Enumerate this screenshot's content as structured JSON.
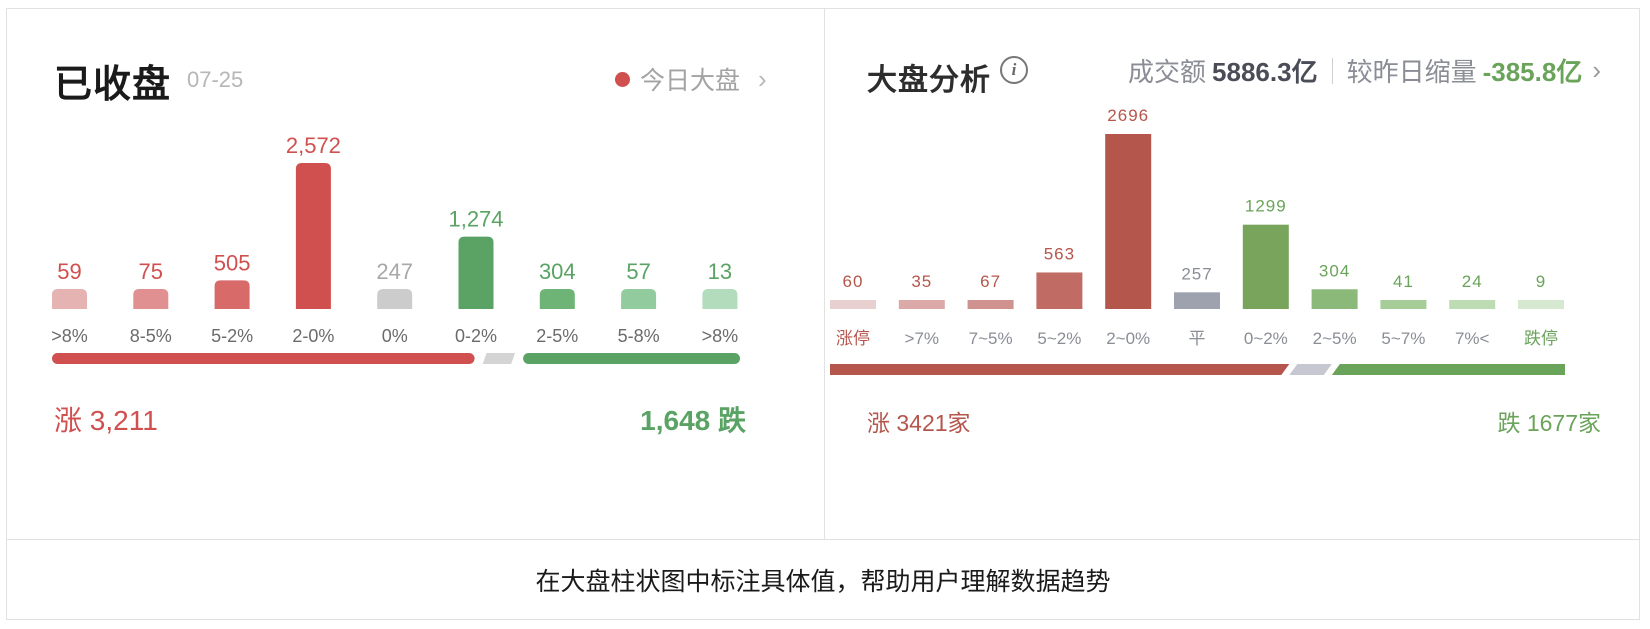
{
  "left_panel": {
    "title": "已收盘",
    "date": "07-25",
    "link_label": "今日大盘",
    "chevron": "›",
    "summary_up": "涨 3,211",
    "summary_down": "1,648 跌",
    "colors": {
      "up_strong": "#d05050",
      "flat": "#cccccc",
      "down_strong": "#5aa364"
    }
  },
  "right_panel": {
    "title": "大盘分析",
    "info_icon": "i",
    "volume_label": "成交额",
    "volume_value": "5886.3亿",
    "change_label": "较昨日缩量",
    "change_value": "-385.8亿",
    "chevron": "›",
    "summary_up": "涨 3421家",
    "summary_down": "跌 1677家"
  },
  "footer": {
    "caption": "在大盘柱状图中标注具体值，帮助用户理解数据趋势"
  },
  "chart_data": [
    {
      "type": "bar",
      "categories": [
        ">8%",
        "8-5%",
        "5-2%",
        "2-0%",
        "0%",
        "0-2%",
        "2-5%",
        "5-8%",
        ">8%"
      ],
      "values": [
        59,
        75,
        505,
        2572,
        247,
        1274,
        304,
        57,
        13
      ],
      "value_labels": [
        "59",
        "75",
        "505",
        "2,572",
        "247",
        "1,274",
        "304",
        "57",
        "13"
      ],
      "colors": [
        "#e6b3b3",
        "#e09090",
        "#d86a6a",
        "#d05050",
        "#cccccc",
        "#5aa364",
        "#6db476",
        "#92cc9e",
        "#b3dcbc"
      ],
      "label_colors": [
        "#d05050",
        "#d05050",
        "#d05050",
        "#d05050",
        "#a8a8a8",
        "#5aa364",
        "#5aa364",
        "#5aa364",
        "#5aa364"
      ],
      "ratio_bar": {
        "up": 3211,
        "flat": 247,
        "down": 1648,
        "colors": {
          "up": "#d05050",
          "flat": "#d4d4d4",
          "down": "#5aa364"
        }
      }
    },
    {
      "type": "bar",
      "categories": [
        "涨停",
        ">7%",
        "7~5%",
        "5~2%",
        "2~0%",
        "平",
        "0~2%",
        "2~5%",
        "5~7%",
        "7%<",
        "跌停"
      ],
      "values": [
        60,
        35,
        67,
        563,
        2696,
        257,
        1299,
        304,
        41,
        24,
        9
      ],
      "value_labels": [
        "60",
        "35",
        "67",
        "563",
        "2696",
        "257",
        "1299",
        "304",
        "41",
        "24",
        "9"
      ],
      "colors": [
        "#e8d0d0",
        "#dbaaa8",
        "#d0928f",
        "#c06b63",
        "#b5564c",
        "#9ea1ae",
        "#78a45c",
        "#8ab97a",
        "#a6cd98",
        "#bddcb3",
        "#d6e9d0"
      ],
      "label_colors": [
        "#b5564c",
        "#b5564c",
        "#b5564c",
        "#b5564c",
        "#b5564c",
        "#8b8d96",
        "#6aa35a",
        "#6aa35a",
        "#6aa35a",
        "#6aa35a",
        "#6aa35a"
      ],
      "category_colors": [
        "#b5564c",
        "#8b8d96",
        "#8b8d96",
        "#8b8d96",
        "#8b8d96",
        "#8b8d96",
        "#8b8d96",
        "#8b8d96",
        "#8b8d96",
        "#8b8d96",
        "#6aa35a"
      ],
      "ratio_bar": {
        "up": 3421,
        "flat": 257,
        "down": 1677,
        "colors": {
          "up": "#b5564c",
          "flat": "#c5c7d1",
          "down": "#6aa35a"
        }
      }
    }
  ]
}
